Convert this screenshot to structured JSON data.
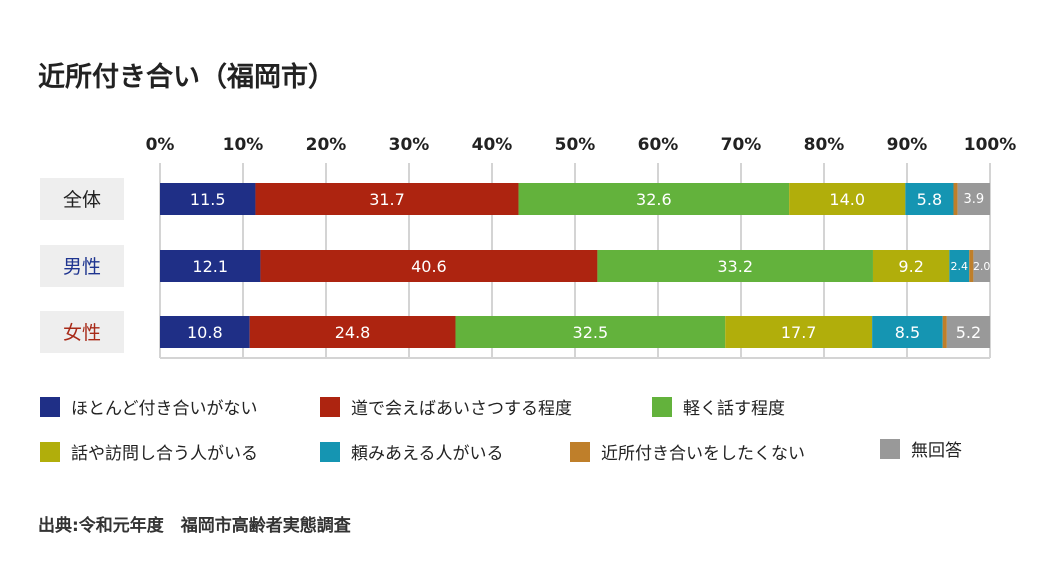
{
  "chart_data": {
    "type": "bar",
    "orientation": "horizontal",
    "stacked": "percent",
    "title": "近所付き合い（福岡市）",
    "x_ticks": [
      "0%",
      "10%",
      "20%",
      "30%",
      "40%",
      "50%",
      "60%",
      "70%",
      "80%",
      "90%",
      "100%"
    ],
    "xlim": [
      0,
      100
    ],
    "grid": "vertical",
    "legend_position": "bottom",
    "categories": [
      "全体",
      "男性",
      "女性"
    ],
    "category_colors": [
      "#222222",
      "#1f3590",
      "#a82a18"
    ],
    "series": [
      {
        "name": "ほとんど付き合いがない",
        "color": "#1f2f86",
        "values": [
          11.5,
          12.1,
          10.8
        ],
        "labels": [
          "11.5",
          "12.1",
          "10.8"
        ]
      },
      {
        "name": "道で会えばあいさつする程度",
        "color": "#ad2410",
        "values": [
          31.7,
          40.6,
          24.8
        ],
        "labels": [
          "31.7",
          "40.6",
          "24.8"
        ]
      },
      {
        "name": "軽く話す程度",
        "color": "#63b23c",
        "values": [
          32.6,
          33.2,
          32.5
        ],
        "labels": [
          "32.6",
          "33.2",
          "32.5"
        ]
      },
      {
        "name": "話や訪問し合う人がいる",
        "color": "#b1ae0b",
        "values": [
          14.0,
          9.2,
          17.7
        ],
        "labels": [
          "14.0",
          "9.2",
          "17.7"
        ]
      },
      {
        "name": "頼みあえる人がいる",
        "color": "#1595b2",
        "values": [
          5.8,
          2.4,
          8.5
        ],
        "labels": [
          "5.8",
          "2.4",
          "8.5"
        ]
      },
      {
        "name": "近所付き合いをしたくない",
        "color": "#bf7f2a",
        "values": [
          0.5,
          0.5,
          0.5
        ],
        "labels": [
          "",
          "",
          ""
        ]
      },
      {
        "name": "無回答",
        "color": "#999999",
        "values": [
          3.9,
          2.0,
          5.2
        ],
        "labels": [
          "3.9",
          "2.0",
          "5.2"
        ]
      }
    ]
  },
  "source": "出典:令和元年度　福岡市高齢者実態調査"
}
